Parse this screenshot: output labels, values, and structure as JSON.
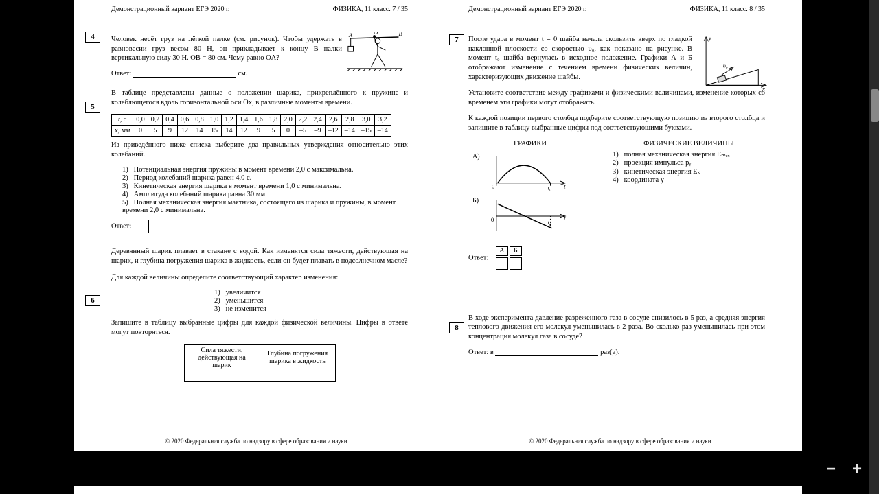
{
  "viewer": {
    "zoom_out": "−",
    "zoom_in": "+"
  },
  "left": {
    "header_left": "Демонстрационный вариант ЕГЭ 2020 г.",
    "header_right": "ФИЗИКА, 11 класс.   7 / 35",
    "q4": {
      "num": "4",
      "text": "Человек несёт груз на лёгкой палке (см. рисунок). Чтобы удержать в равновесии груз весом 80 Н, он прикладывает к концу B палки вертикальную силу 30 Н. OB = 80 см. Чему равно OA?",
      "answer_label": "Ответ:",
      "answer_unit": "см.",
      "fig": {
        "A": "A",
        "B": "B",
        "O": "O"
      }
    },
    "q5": {
      "num": "5",
      "text": "В таблице представлены данные о положении шарика, прикреплённого к пружине и колеблющегося вдоль горизонтальной оси Ox, в различные моменты времени.",
      "table": {
        "row1_label": "t, с",
        "row2_label": "x, мм",
        "t": [
          "0,0",
          "0,2",
          "0,4",
          "0,6",
          "0,8",
          "1,0",
          "1,2",
          "1,4",
          "1,6",
          "1,8",
          "2,0",
          "2,2",
          "2,4",
          "2,6",
          "2,8",
          "3,0",
          "3,2"
        ],
        "x": [
          "0",
          "5",
          "9",
          "12",
          "14",
          "15",
          "14",
          "12",
          "9",
          "5",
          "0",
          "–5",
          "–9",
          "–12",
          "–14",
          "–15",
          "–14"
        ]
      },
      "after": "Из приведённого ниже списка выберите два правильных утверждения относительно этих колебаний.",
      "opts": [
        "Потенциальная энергия пружины в момент времени 2,0 с максимальна.",
        "Период колебаний шарика равен 4,0 с.",
        "Кинетическая энергия шарика в момент времени 1,0 с минимальна.",
        "Амплитуда колебаний шарика равна 30 мм.",
        "Полная механическая энергия маятника, состоящего из шарика и пружины, в момент времени 2,0 с минимальна."
      ],
      "answer_label": "Ответ:"
    },
    "q6": {
      "num": "6",
      "text": "Деревянный шарик плавает в стакане с водой. Как изменятся сила тяжести, действующая на шарик, и глубина погружения шарика в жидкость, если он будет плавать в подсолнечном масле?",
      "instr": "Для каждой величины определите соответствующий характер изменения:",
      "opts": [
        "увеличится",
        "уменьшится",
        "не изменится"
      ],
      "after": "Запишите в таблицу выбранные цифры для каждой физической величины. Цифры в ответе могут повторяться.",
      "col1": "Сила тяжести, действующая на шарик",
      "col2": "Глубина погружения шарика в жидкость"
    },
    "footer": "© 2020 Федеральная служба по надзору в сфере образования и науки"
  },
  "right": {
    "header_left": "Демонстрационный вариант ЕГЭ 2020 г.",
    "header_right": "ФИЗИКА, 11 класс.   8 / 35",
    "q7": {
      "num": "7",
      "text1": "После удара в момент t = 0 шайба начала скользить вверх по гладкой наклонной плоскости со скоростью υ₀, как показано на рисунке. В момент t₀ шайба вернулась в исходное положение. Графики А и Б отображают изменение с течением времени физических величин, характеризующих движение шайбы.",
      "text2": "Установите соответствие между графиками и физическими величинами, изменение которых со временем эти графики могут отображать.",
      "text3": "К каждой позиции первого столбца подберите соответствующую позицию из второго столбца и запишите в таблицу выбранные цифры под соответствующими буквами.",
      "graphs_head": "ГРАФИКИ",
      "phys_head": "ФИЗИЧЕСКИЕ ВЕЛИЧИНЫ",
      "labelA": "А)",
      "labelB": "Б)",
      "axis0": "0",
      "axist0": "t₀",
      "axist": "t",
      "phys": [
        "полная механическая энергия Eₘₑₓ",
        "проекция импульса pᵧ",
        "кинетическая энергия Eₖ",
        "координата y"
      ],
      "ab": {
        "A": "А",
        "B": "Б"
      },
      "answer_label": "Ответ:",
      "fig": {
        "y": "y",
        "x": "x",
        "v0": "υ₀"
      }
    },
    "q8": {
      "num": "8",
      "text": "В ходе эксперимента давление разреженного газа в сосуде снизилось в 5 раз, а средняя энергия теплового движения его молекул уменьшилась в 2 раза. Во сколько раз уменьшилась при этом концентрация молекул газа в сосуде?",
      "answer_label": "Ответ: в",
      "answer_unit": "раз(а)."
    },
    "footer": "© 2020 Федеральная служба по надзору в сфере образования и науки"
  }
}
